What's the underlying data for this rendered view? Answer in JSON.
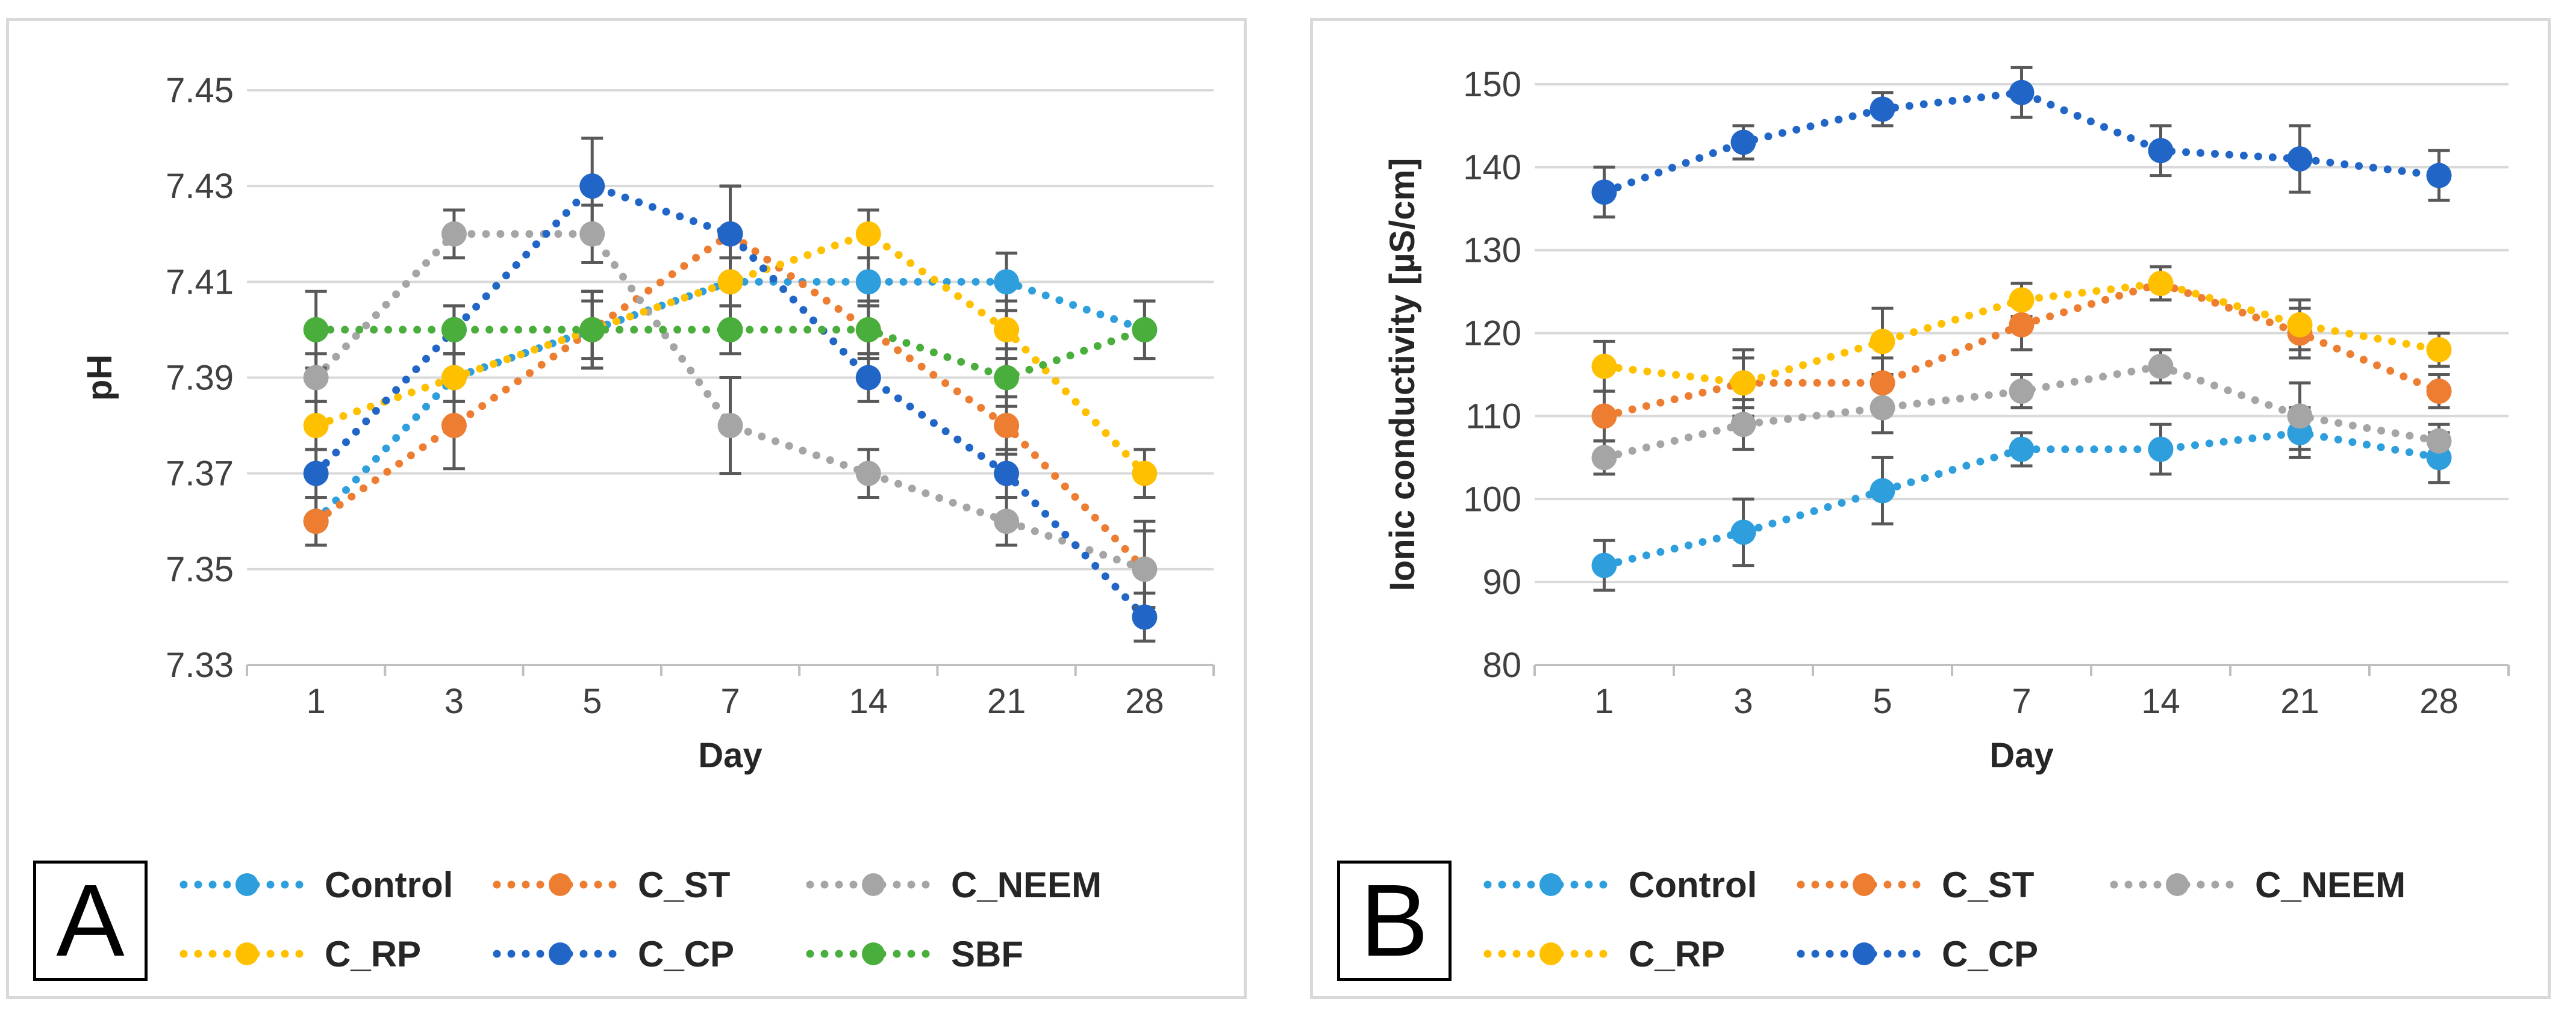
{
  "chart_data": [
    {
      "type": "line",
      "panel": "A",
      "title": "",
      "xlabel": "Day",
      "ylabel": "pH",
      "categories": [
        "1",
        "3",
        "5",
        "7",
        "14",
        "21",
        "28"
      ],
      "ylim": [
        7.33,
        7.45
      ],
      "yticks": [
        "7.33",
        "7.35",
        "7.37",
        "7.39",
        "7.41",
        "7.43",
        "7.45"
      ],
      "grid": true,
      "legend": "bottom",
      "series": [
        {
          "name": "Control",
          "color": "#2e9fdc",
          "values": [
            7.36,
            7.39,
            7.4,
            7.41,
            7.41,
            7.41,
            7.4
          ],
          "errors": [
            0.005,
            0.005,
            0.008,
            0.005,
            0.005,
            0.006,
            0.006
          ]
        },
        {
          "name": "C_ST",
          "color": "#ed7d31",
          "values": [
            7.36,
            7.38,
            7.4,
            7.42,
            7.4,
            7.38,
            7.35
          ],
          "errors": [
            0.005,
            0.009,
            0.008,
            0.01,
            0.006,
            0.006,
            0.008
          ]
        },
        {
          "name": "C_NEEM",
          "color": "#a5a5a5",
          "values": [
            7.39,
            7.42,
            7.42,
            7.38,
            7.37,
            7.36,
            7.35
          ],
          "errors": [
            0.005,
            0.005,
            0.006,
            0.01,
            0.005,
            0.005,
            0.01
          ]
        },
        {
          "name": "C_RP",
          "color": "#ffc000",
          "values": [
            7.38,
            7.39,
            7.4,
            7.41,
            7.42,
            7.4,
            7.37
          ],
          "errors": [
            0.005,
            0.005,
            0.006,
            0.005,
            0.005,
            0.006,
            0.005
          ]
        },
        {
          "name": "C_CP",
          "color": "#2166c6",
          "values": [
            7.37,
            7.4,
            7.43,
            7.42,
            7.39,
            7.37,
            7.34
          ],
          "errors": [
            0.005,
            0.005,
            0.01,
            0.01,
            0.005,
            0.005,
            0.005
          ]
        },
        {
          "name": "SBF",
          "color": "#4aae3c",
          "values": [
            7.4,
            7.4,
            7.4,
            7.4,
            7.4,
            7.39,
            7.4
          ],
          "errors": [
            0.008,
            0.005,
            0.008,
            0.005,
            0.005,
            0.006,
            0.006
          ]
        }
      ]
    },
    {
      "type": "line",
      "panel": "B",
      "title": "",
      "xlabel": "Day",
      "ylabel": "Ionic conductivity [µS/cm]",
      "categories": [
        "1",
        "3",
        "5",
        "7",
        "14",
        "21",
        "28"
      ],
      "ylim": [
        80,
        150
      ],
      "yticks": [
        "80",
        "90",
        "100",
        "110",
        "120",
        "130",
        "140",
        "150"
      ],
      "grid": true,
      "legend": "bottom",
      "series": [
        {
          "name": "Control",
          "color": "#2e9fdc",
          "values": [
            92,
            96,
            101,
            106,
            106,
            108,
            105
          ],
          "errors": [
            3,
            4,
            4,
            2,
            3,
            3,
            3
          ]
        },
        {
          "name": "C_ST",
          "color": "#ed7d31",
          "values": [
            110,
            114,
            114,
            121,
            126,
            120,
            113
          ],
          "errors": [
            3,
            3,
            3,
            3,
            2,
            3,
            2
          ]
        },
        {
          "name": "C_NEEM",
          "color": "#a5a5a5",
          "values": [
            105,
            109,
            111,
            113,
            116,
            110,
            107
          ],
          "errors": [
            2,
            3,
            3,
            2,
            2,
            4,
            2
          ]
        },
        {
          "name": "C_RP",
          "color": "#ffc000",
          "values": [
            116,
            114,
            119,
            124,
            126,
            121,
            118
          ],
          "errors": [
            3,
            4,
            4,
            2,
            2,
            3,
            2
          ]
        },
        {
          "name": "C_CP",
          "color": "#2166c6",
          "values": [
            137,
            143,
            147,
            149,
            142,
            141,
            139
          ],
          "errors": [
            3,
            2,
            2,
            3,
            3,
            4,
            3
          ]
        }
      ]
    }
  ],
  "panels": {
    "a_label": "A",
    "b_label": "B"
  }
}
